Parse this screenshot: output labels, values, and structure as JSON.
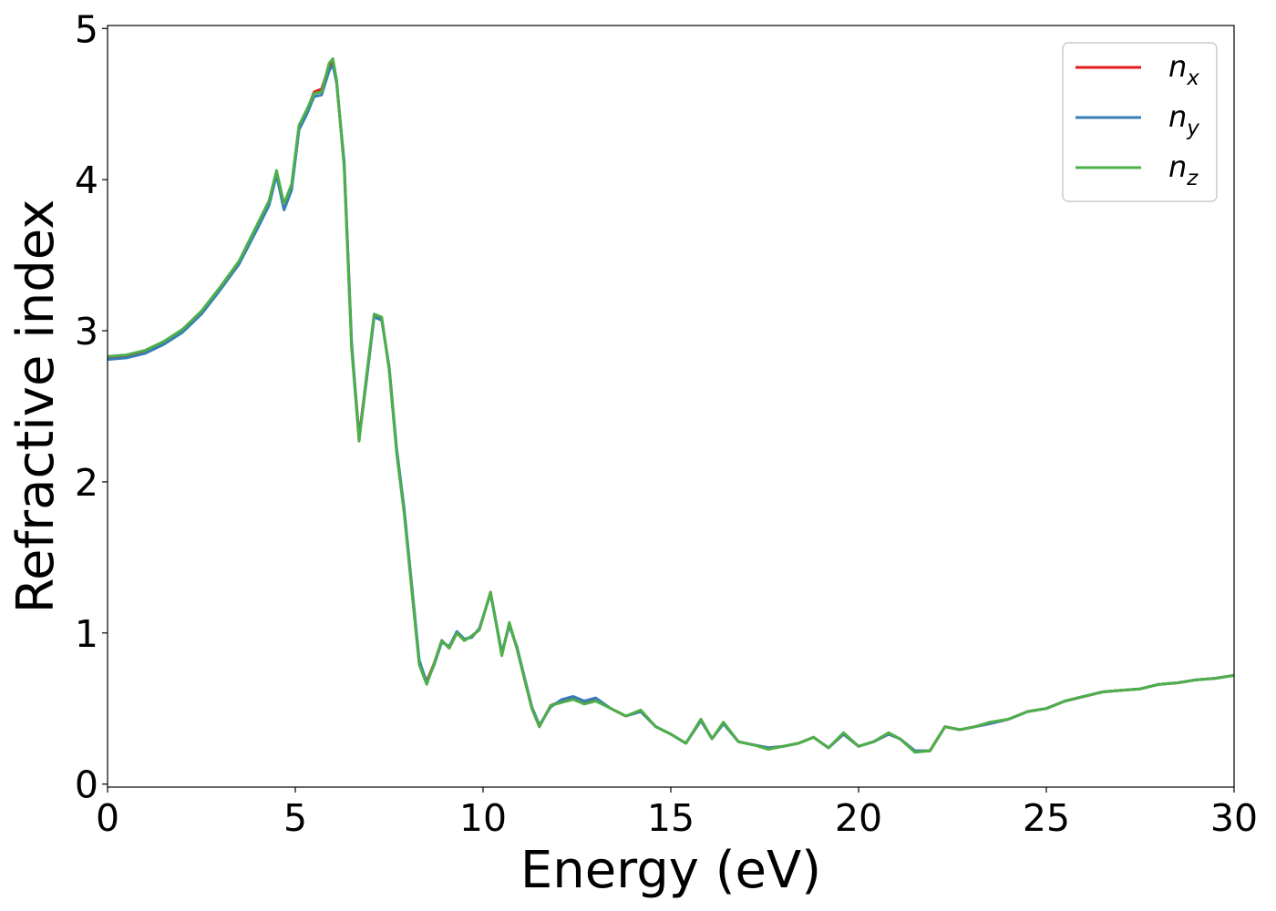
{
  "chart_data": {
    "type": "line",
    "xlabel": "Energy (eV)",
    "ylabel": "Refractive index",
    "xlim": [
      0,
      30
    ],
    "ylim": [
      -0.02,
      5.02
    ],
    "xticks": [
      "0",
      "5",
      "10",
      "15",
      "20",
      "25",
      "30"
    ],
    "yticks": [
      "0",
      "1",
      "2",
      "3",
      "4",
      "5"
    ],
    "grid": false,
    "legend_position": "top-right",
    "series": [
      {
        "name": "n_x",
        "label_base": "n",
        "label_sub": "x",
        "color": "#e41a1c",
        "x": [
          0,
          0.5,
          1,
          1.5,
          2,
          2.5,
          3,
          3.5,
          4,
          4.3,
          4.5,
          4.7,
          4.9,
          5.1,
          5.3,
          5.5,
          5.7,
          5.9,
          6.0,
          6.1,
          6.3,
          6.5,
          6.7,
          6.9,
          7.1,
          7.3,
          7.5,
          7.7,
          7.9,
          8.1,
          8.3,
          8.5,
          8.7,
          8.9,
          9.1,
          9.3,
          9.5,
          9.7,
          9.9,
          10.2,
          10.5,
          10.7,
          10.9,
          11.1,
          11.3,
          11.5,
          11.8,
          12.1,
          12.4,
          12.7,
          13.0,
          13.4,
          13.8,
          14.2,
          14.6,
          15.0,
          15.4,
          15.8,
          16.1,
          16.4,
          16.8,
          17.2,
          17.6,
          18.0,
          18.4,
          18.8,
          19.2,
          19.6,
          20.0,
          20.4,
          20.8,
          21.1,
          21.5,
          21.9,
          22.3,
          22.7,
          23.1,
          23.5,
          24.0,
          24.5,
          25.0,
          25.5,
          26.0,
          26.5,
          27.0,
          27.5,
          28.0,
          28.5,
          29.0,
          29.5,
          30.0
        ],
        "values": [
          2.82,
          2.83,
          2.86,
          2.92,
          3.0,
          3.12,
          3.28,
          3.45,
          3.7,
          3.85,
          4.05,
          3.82,
          3.95,
          4.35,
          4.45,
          4.58,
          4.6,
          4.75,
          4.78,
          4.65,
          4.1,
          2.9,
          2.3,
          2.7,
          3.1,
          3.08,
          2.75,
          2.2,
          1.8,
          1.3,
          0.8,
          0.68,
          0.8,
          0.95,
          0.9,
          1.0,
          0.95,
          0.98,
          1.02,
          1.27,
          0.86,
          1.06,
          0.9,
          0.7,
          0.5,
          0.38,
          0.52,
          0.55,
          0.57,
          0.54,
          0.56,
          0.5,
          0.45,
          0.48,
          0.38,
          0.33,
          0.27,
          0.42,
          0.3,
          0.4,
          0.28,
          0.26,
          0.24,
          0.25,
          0.27,
          0.31,
          0.24,
          0.33,
          0.25,
          0.28,
          0.33,
          0.3,
          0.22,
          0.22,
          0.38,
          0.36,
          0.38,
          0.4,
          0.43,
          0.48,
          0.5,
          0.55,
          0.58,
          0.61,
          0.62,
          0.63,
          0.66,
          0.67,
          0.69,
          0.7,
          0.72
        ]
      },
      {
        "name": "n_y",
        "label_base": "n",
        "label_sub": "y",
        "color": "#377eb8",
        "x": [
          0,
          0.5,
          1,
          1.5,
          2,
          2.5,
          3,
          3.5,
          4,
          4.3,
          4.5,
          4.7,
          4.9,
          5.1,
          5.3,
          5.5,
          5.7,
          5.9,
          6.0,
          6.1,
          6.3,
          6.5,
          6.7,
          6.9,
          7.1,
          7.3,
          7.5,
          7.7,
          7.9,
          8.1,
          8.3,
          8.5,
          8.7,
          8.9,
          9.1,
          9.3,
          9.5,
          9.7,
          9.9,
          10.2,
          10.5,
          10.7,
          10.9,
          11.1,
          11.3,
          11.5,
          11.8,
          12.1,
          12.4,
          12.7,
          13.0,
          13.4,
          13.8,
          14.2,
          14.6,
          15.0,
          15.4,
          15.8,
          16.1,
          16.4,
          16.8,
          17.2,
          17.6,
          18.0,
          18.4,
          18.8,
          19.2,
          19.6,
          20.0,
          20.4,
          20.8,
          21.1,
          21.5,
          21.9,
          22.3,
          22.7,
          23.1,
          23.5,
          24.0,
          24.5,
          25.0,
          25.5,
          26.0,
          26.5,
          27.0,
          27.5,
          28.0,
          28.5,
          29.0,
          29.5,
          30.0
        ],
        "values": [
          2.81,
          2.82,
          2.85,
          2.91,
          2.99,
          3.11,
          3.27,
          3.44,
          3.68,
          3.83,
          4.03,
          3.8,
          3.93,
          4.33,
          4.43,
          4.55,
          4.56,
          4.72,
          4.76,
          4.64,
          4.12,
          2.92,
          2.28,
          2.68,
          3.09,
          3.07,
          2.76,
          2.22,
          1.82,
          1.32,
          0.82,
          0.67,
          0.79,
          0.94,
          0.91,
          1.01,
          0.96,
          0.97,
          1.03,
          1.26,
          0.87,
          1.05,
          0.91,
          0.71,
          0.51,
          0.39,
          0.51,
          0.56,
          0.58,
          0.55,
          0.57,
          0.5,
          0.45,
          0.48,
          0.38,
          0.33,
          0.27,
          0.42,
          0.3,
          0.4,
          0.28,
          0.26,
          0.24,
          0.25,
          0.27,
          0.31,
          0.24,
          0.33,
          0.25,
          0.28,
          0.33,
          0.3,
          0.22,
          0.22,
          0.38,
          0.36,
          0.38,
          0.4,
          0.43,
          0.48,
          0.5,
          0.55,
          0.58,
          0.61,
          0.62,
          0.63,
          0.66,
          0.67,
          0.69,
          0.7,
          0.72
        ]
      },
      {
        "name": "n_z",
        "label_base": "n",
        "label_sub": "z",
        "color": "#4daf4a",
        "x": [
          0,
          0.5,
          1,
          1.5,
          2,
          2.5,
          3,
          3.5,
          4,
          4.3,
          4.5,
          4.7,
          4.9,
          5.1,
          5.3,
          5.5,
          5.7,
          5.9,
          6.0,
          6.1,
          6.3,
          6.5,
          6.7,
          6.9,
          7.1,
          7.3,
          7.5,
          7.7,
          7.9,
          8.1,
          8.3,
          8.5,
          8.7,
          8.9,
          9.1,
          9.3,
          9.5,
          9.7,
          9.9,
          10.2,
          10.5,
          10.7,
          10.9,
          11.1,
          11.3,
          11.5,
          11.8,
          12.1,
          12.4,
          12.7,
          13.0,
          13.4,
          13.8,
          14.2,
          14.6,
          15.0,
          15.4,
          15.8,
          16.1,
          16.4,
          16.8,
          17.2,
          17.6,
          18.0,
          18.4,
          18.8,
          19.2,
          19.6,
          20.0,
          20.4,
          20.8,
          21.1,
          21.5,
          21.9,
          22.3,
          22.7,
          23.1,
          23.5,
          24.0,
          24.5,
          25.0,
          25.5,
          26.0,
          26.5,
          27.0,
          27.5,
          28.0,
          28.5,
          29.0,
          29.5,
          30.0
        ],
        "values": [
          2.83,
          2.84,
          2.87,
          2.93,
          3.01,
          3.13,
          3.29,
          3.46,
          3.71,
          3.86,
          4.06,
          3.84,
          3.97,
          4.36,
          4.46,
          4.57,
          4.58,
          4.77,
          4.8,
          4.66,
          4.08,
          2.88,
          2.27,
          2.71,
          3.11,
          3.09,
          2.74,
          2.19,
          1.79,
          1.29,
          0.79,
          0.66,
          0.8,
          0.95,
          0.9,
          1.0,
          0.95,
          0.98,
          1.02,
          1.27,
          0.85,
          1.07,
          0.9,
          0.7,
          0.5,
          0.38,
          0.52,
          0.54,
          0.56,
          0.53,
          0.55,
          0.5,
          0.45,
          0.49,
          0.38,
          0.33,
          0.27,
          0.43,
          0.3,
          0.41,
          0.28,
          0.26,
          0.23,
          0.25,
          0.27,
          0.31,
          0.24,
          0.34,
          0.25,
          0.28,
          0.34,
          0.3,
          0.21,
          0.22,
          0.38,
          0.36,
          0.38,
          0.41,
          0.43,
          0.48,
          0.5,
          0.55,
          0.58,
          0.61,
          0.62,
          0.63,
          0.66,
          0.67,
          0.69,
          0.7,
          0.72
        ]
      }
    ]
  }
}
